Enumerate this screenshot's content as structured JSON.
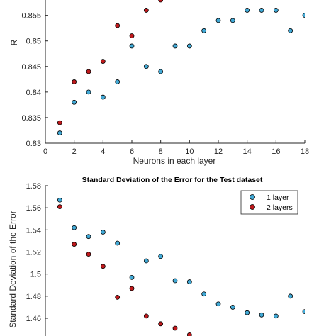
{
  "chart_data": [
    {
      "type": "scatter",
      "title": "",
      "xlabel": "Neurons in each layer",
      "ylabel": "R",
      "xlim": [
        0,
        18
      ],
      "ylim": [
        0.83,
        0.858
      ],
      "x_ticks": [
        "0",
        "2",
        "4",
        "6",
        "8",
        "10",
        "12",
        "14",
        "16",
        "18"
      ],
      "y_ticks": [
        "0.83",
        "0.835",
        "0.84",
        "0.845",
        "0.85",
        "0.855"
      ],
      "grid": false,
      "series": [
        {
          "color": "#41a9d6",
          "points": [
            [
              1,
              0.832
            ],
            [
              2,
              0.838
            ],
            [
              3,
              0.84
            ],
            [
              4,
              0.839
            ],
            [
              5,
              0.842
            ],
            [
              6,
              0.849
            ],
            [
              7,
              0.845
            ],
            [
              8,
              0.844
            ],
            [
              9,
              0.849
            ],
            [
              10,
              0.849
            ],
            [
              11,
              0.852
            ],
            [
              12,
              0.854
            ],
            [
              13,
              0.854
            ],
            [
              14,
              0.856
            ],
            [
              15,
              0.856
            ],
            [
              16,
              0.856
            ],
            [
              17,
              0.852
            ],
            [
              18,
              0.855
            ]
          ]
        },
        {
          "color": "#c0191c",
          "points": [
            [
              1,
              0.834
            ],
            [
              2,
              0.842
            ],
            [
              3,
              0.844
            ],
            [
              4,
              0.846
            ],
            [
              5,
              0.853
            ],
            [
              6,
              0.851
            ],
            [
              7,
              0.856
            ],
            [
              8,
              0.858
            ]
          ]
        }
      ]
    },
    {
      "type": "scatter",
      "title": "Standard Deviation of the Error for the Test dataset",
      "xlabel": "",
      "ylabel": "Standard Deviation of the Error",
      "ylim": [
        1.455,
        1.58
      ],
      "y_ticks": [
        "1.58",
        "1.56",
        "1.54",
        "1.52",
        "1.5",
        "1.48",
        "1.46"
      ],
      "grid": false,
      "legend_position": "top-right",
      "series": [
        {
          "name": "1 layer",
          "color": "#41a9d6",
          "points": [
            [
              1,
              1.567
            ],
            [
              2,
              1.542
            ],
            [
              3,
              1.534
            ],
            [
              4,
              1.538
            ],
            [
              5,
              1.528
            ],
            [
              6,
              1.497
            ],
            [
              7,
              1.512
            ],
            [
              8,
              1.516
            ],
            [
              9,
              1.494
            ],
            [
              10,
              1.493
            ],
            [
              11,
              1.482
            ],
            [
              12,
              1.473
            ],
            [
              13,
              1.47
            ],
            [
              14,
              1.465
            ],
            [
              15,
              1.463
            ],
            [
              16,
              1.462
            ],
            [
              17,
              1.48
            ],
            [
              18,
              1.466
            ]
          ]
        },
        {
          "name": "2 layers",
          "color": "#c0191c",
          "points": [
            [
              1,
              1.561
            ],
            [
              2,
              1.527
            ],
            [
              3,
              1.518
            ],
            [
              4,
              1.507
            ],
            [
              5,
              1.479
            ],
            [
              6,
              1.487
            ],
            [
              7,
              1.462
            ],
            [
              8,
              1.455
            ],
            [
              9,
              1.451
            ],
            [
              10,
              1.445
            ]
          ]
        }
      ]
    }
  ]
}
